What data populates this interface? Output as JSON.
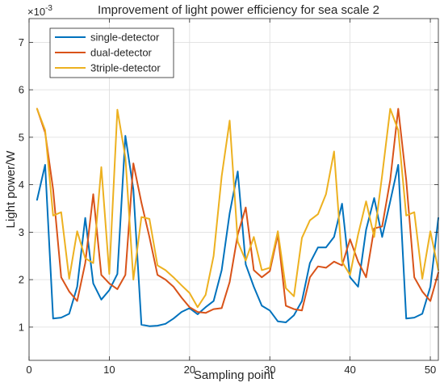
{
  "chart_data": {
    "type": "line",
    "title": "Improvement of light power efficiency for sea scale 2",
    "xlabel": "Sampling point",
    "ylabel": "Light power/W",
    "y_exponent_label": "×10",
    "y_exponent_value": "-3",
    "xlim": [
      0,
      51
    ],
    "ylim": [
      0.3,
      7.5
    ],
    "xticks": [
      0,
      10,
      20,
      30,
      40,
      50
    ],
    "yticks": [
      1,
      2,
      3,
      4,
      5,
      6,
      7
    ],
    "grid": true,
    "legend_position": "top-left",
    "x": [
      1,
      2,
      3,
      4,
      5,
      6,
      7,
      8,
      9,
      10,
      11,
      12,
      13,
      14,
      15,
      16,
      17,
      18,
      19,
      20,
      21,
      22,
      23,
      24,
      25,
      26,
      27,
      28,
      29,
      30,
      31,
      32,
      33,
      34,
      35,
      36,
      37,
      38,
      39,
      40,
      41,
      42,
      43,
      44,
      45,
      46,
      47,
      48,
      49,
      50,
      51
    ],
    "series": [
      {
        "name": "single-detector",
        "color": "#0072BD",
        "values": [
          3.68,
          4.42,
          1.18,
          1.2,
          1.28,
          1.85,
          3.3,
          1.92,
          1.58,
          1.78,
          2.12,
          5.03,
          3.9,
          1.05,
          1.02,
          1.03,
          1.07,
          1.18,
          1.32,
          1.4,
          1.27,
          1.42,
          1.55,
          2.2,
          3.4,
          4.28,
          2.32,
          1.85,
          1.45,
          1.35,
          1.12,
          1.1,
          1.25,
          1.55,
          2.35,
          2.68,
          2.68,
          2.9,
          3.6,
          2.05,
          1.85,
          3.05,
          3.72,
          2.9,
          3.65,
          4.42,
          1.18,
          1.2,
          1.28,
          1.85,
          3.3
        ]
      },
      {
        "name": "dual-detector",
        "color": "#D95319",
        "values": [
          5.6,
          5.1,
          3.9,
          2.05,
          1.75,
          1.55,
          2.35,
          3.8,
          2.1,
          1.92,
          1.8,
          2.1,
          4.45,
          3.62,
          2.9,
          2.1,
          2.0,
          1.85,
          1.62,
          1.42,
          1.32,
          1.3,
          1.38,
          1.4,
          1.95,
          2.95,
          3.52,
          2.2,
          2.05,
          2.18,
          2.95,
          1.45,
          1.38,
          1.35,
          2.05,
          2.28,
          2.25,
          2.38,
          2.3,
          2.85,
          2.38,
          2.05,
          3.08,
          3.12,
          4.1,
          5.6,
          4.1,
          2.05,
          1.75,
          1.55,
          2.15
        ]
      },
      {
        "name": "3triple-detector",
        "color": "#EDB120",
        "values": [
          5.6,
          5.15,
          3.35,
          3.42,
          2.02,
          3.02,
          2.45,
          2.35,
          4.37,
          2.12,
          5.58,
          4.58,
          2.0,
          3.32,
          3.28,
          2.3,
          2.2,
          2.05,
          1.88,
          1.72,
          1.42,
          1.68,
          2.5,
          4.18,
          5.35,
          2.8,
          2.4,
          2.9,
          2.2,
          2.25,
          3.02,
          1.82,
          1.65,
          2.88,
          3.25,
          3.38,
          3.8,
          4.7,
          2.38,
          2.1,
          2.95,
          3.65,
          2.9,
          4.2,
          5.6,
          5.15,
          3.35,
          3.42,
          2.02,
          3.02,
          2.2
        ]
      }
    ]
  }
}
